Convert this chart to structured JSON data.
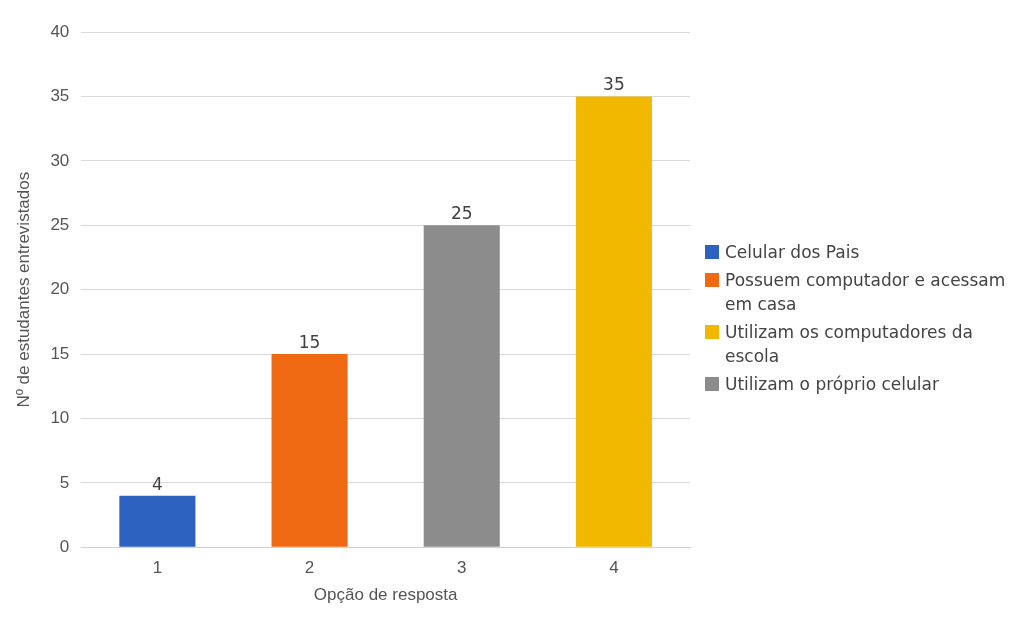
{
  "chart_data": {
    "type": "bar",
    "categories": [
      "1",
      "2",
      "3",
      "4"
    ],
    "xlabel": "Opção de resposta",
    "ylabel": "Nº de estudantes entrevistados",
    "ylim": [
      0,
      40
    ],
    "yticks": [
      0,
      5,
      10,
      15,
      20,
      25,
      30,
      35,
      40
    ],
    "grid": "y",
    "legend": "right",
    "data_labels": true,
    "series": [
      {
        "name": "Celular dos Pais",
        "color": "#2e62c0",
        "values": [
          4,
          null,
          null,
          null
        ]
      },
      {
        "name": "Possuem computador e acessam em casa",
        "color": "#f06a14",
        "values": [
          null,
          15,
          null,
          null
        ]
      },
      {
        "name": "Utilizam os computadores da escola",
        "color": "#f2b800",
        "values": [
          null,
          null,
          null,
          35
        ]
      },
      {
        "name": "Utilizam o próprio celular",
        "color": "#8c8c8c",
        "values": [
          null,
          null,
          25,
          null
        ]
      }
    ]
  }
}
